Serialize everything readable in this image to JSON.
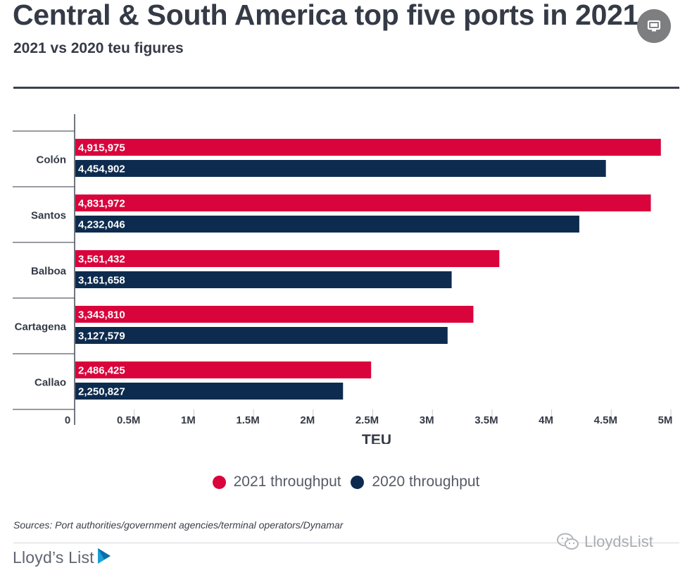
{
  "title": "Central & South America top five ports in 2021",
  "subtitle": "2021 vs 2020 teu figures",
  "source": "Sources: Port authorities/government agencies/terminal operators/Dynamar",
  "brand": "Lloyd’s List",
  "watermark": "LloydsList",
  "icons": {
    "fullscreen": "monitor-icon",
    "brand": "play-triangle-icon",
    "watermark": "wechat-icon"
  },
  "colors": {
    "series_2021": "#d9043b",
    "series_2020": "#0d2b4e"
  },
  "chart_data": {
    "type": "bar",
    "orientation": "horizontal",
    "categories": [
      "Colón",
      "Santos",
      "Balboa",
      "Cartagena",
      "Callao"
    ],
    "series": [
      {
        "name": "2021 throughput",
        "values": [
          4915975,
          4831972,
          3561432,
          3343810,
          2486425
        ],
        "labels": [
          "4,915,975",
          "4,831,972",
          "3,561,432",
          "3,343,810",
          "2,486,425"
        ]
      },
      {
        "name": "2020 throughput",
        "values": [
          4454902,
          4232046,
          3161658,
          3127579,
          2250827
        ],
        "labels": [
          "4,454,902",
          "4,232,046",
          "3,161,658",
          "3,127,579",
          "2,250,827"
        ]
      }
    ],
    "xlabel": "TEU",
    "ylabel": "",
    "xlim": [
      0,
      5000000
    ],
    "xticks": [
      0,
      500000,
      1000000,
      1500000,
      2000000,
      2500000,
      3000000,
      3500000,
      4000000,
      4500000,
      5000000
    ],
    "xtick_labels": [
      "0",
      "0.5M",
      "1M",
      "1.5M",
      "2M",
      "2.5M",
      "3M",
      "3.5M",
      "4M",
      "4.5M",
      "5M"
    ],
    "grid": false,
    "legend_position": "bottom"
  }
}
